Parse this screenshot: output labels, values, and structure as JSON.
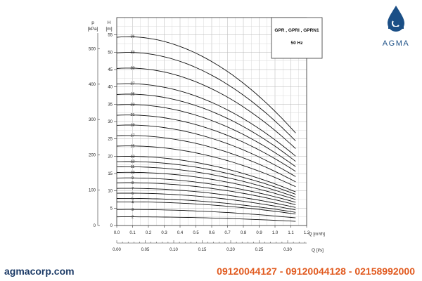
{
  "brand": {
    "name": "AGMA",
    "color": "#1b4f86"
  },
  "footer": {
    "website": "agmacorp.com",
    "phones": "09120044127 - 09120044128 - 02158992000",
    "website_color": "#1b3a66",
    "phones_color": "#e15a1f"
  },
  "chart_data": {
    "type": "line",
    "legend": {
      "title": "GPR , GPRI , GPRN1",
      "frequency": "50 Hz",
      "placement": "top-right"
    },
    "grid": true,
    "x_axis": {
      "label": "Q [m³/h]",
      "ticks": [
        "0.0",
        "0.1",
        "0.2",
        "0.3",
        "0.4",
        "0.5",
        "0.6",
        "0.7",
        "0.8",
        "0.9",
        "1.0",
        "1.1",
        "1.2"
      ],
      "range": [
        0,
        1.2
      ]
    },
    "x2_axis": {
      "label": "Q [l/s]",
      "ticks": [
        "0.00",
        "0.05",
        "0.10",
        "0.15",
        "0.20",
        "0.25",
        "0.30"
      ]
    },
    "y_axis_left": {
      "label_top": "H",
      "unit": "[m]",
      "ticks": [
        "0",
        "5",
        "10",
        "15",
        "20",
        "25",
        "30",
        "35",
        "40",
        "45",
        "50",
        "55"
      ],
      "range": [
        0,
        60
      ]
    },
    "y_axis_pressure": {
      "label_top": "p",
      "unit": "[kPa]",
      "ticks": [
        "0",
        "100",
        "200",
        "300",
        "400",
        "500"
      ]
    },
    "series": [
      {
        "name": "2",
        "shutoff": 2.5,
        "end": 1.2
      },
      {
        "name": "3",
        "shutoff": 4.6,
        "end": 2.2
      },
      {
        "name": "4",
        "shutoff": 6.8,
        "end": 3.3
      },
      {
        "name": "5",
        "shutoff": 7.8,
        "end": 3.8
      },
      {
        "name": "6",
        "shutoff": 9.3,
        "end": 4.5
      },
      {
        "name": "7",
        "shutoff": 10.7,
        "end": 5.2
      },
      {
        "name": "8",
        "shutoff": 12.3,
        "end": 6.0
      },
      {
        "name": "9",
        "shutoff": 13.7,
        "end": 6.7
      },
      {
        "name": "10",
        "shutoff": 15.3,
        "end": 7.5
      },
      {
        "name": "11",
        "shutoff": 16.9,
        "end": 8.2
      },
      {
        "name": "12",
        "shutoff": 18.4,
        "end": 9.0
      },
      {
        "name": "13",
        "shutoff": 19.9,
        "end": 9.7
      },
      {
        "name": "15",
        "shutoff": 22.9,
        "end": 11.2
      },
      {
        "name": "17",
        "shutoff": 25.9,
        "end": 12.6
      },
      {
        "name": "19",
        "shutoff": 28.9,
        "end": 14.1
      },
      {
        "name": "21",
        "shutoff": 31.8,
        "end": 15.6
      },
      {
        "name": "23",
        "shutoff": 34.8,
        "end": 17.0
      },
      {
        "name": "25",
        "shutoff": 37.8,
        "end": 18.5
      },
      {
        "name": "27",
        "shutoff": 40.8,
        "end": 20.0
      },
      {
        "name": "30",
        "shutoff": 45.3,
        "end": 22.2
      },
      {
        "name": "33",
        "shutoff": 49.8,
        "end": 24.4
      },
      {
        "name": "36",
        "shutoff": 54.3,
        "end": 26.7
      }
    ]
  }
}
